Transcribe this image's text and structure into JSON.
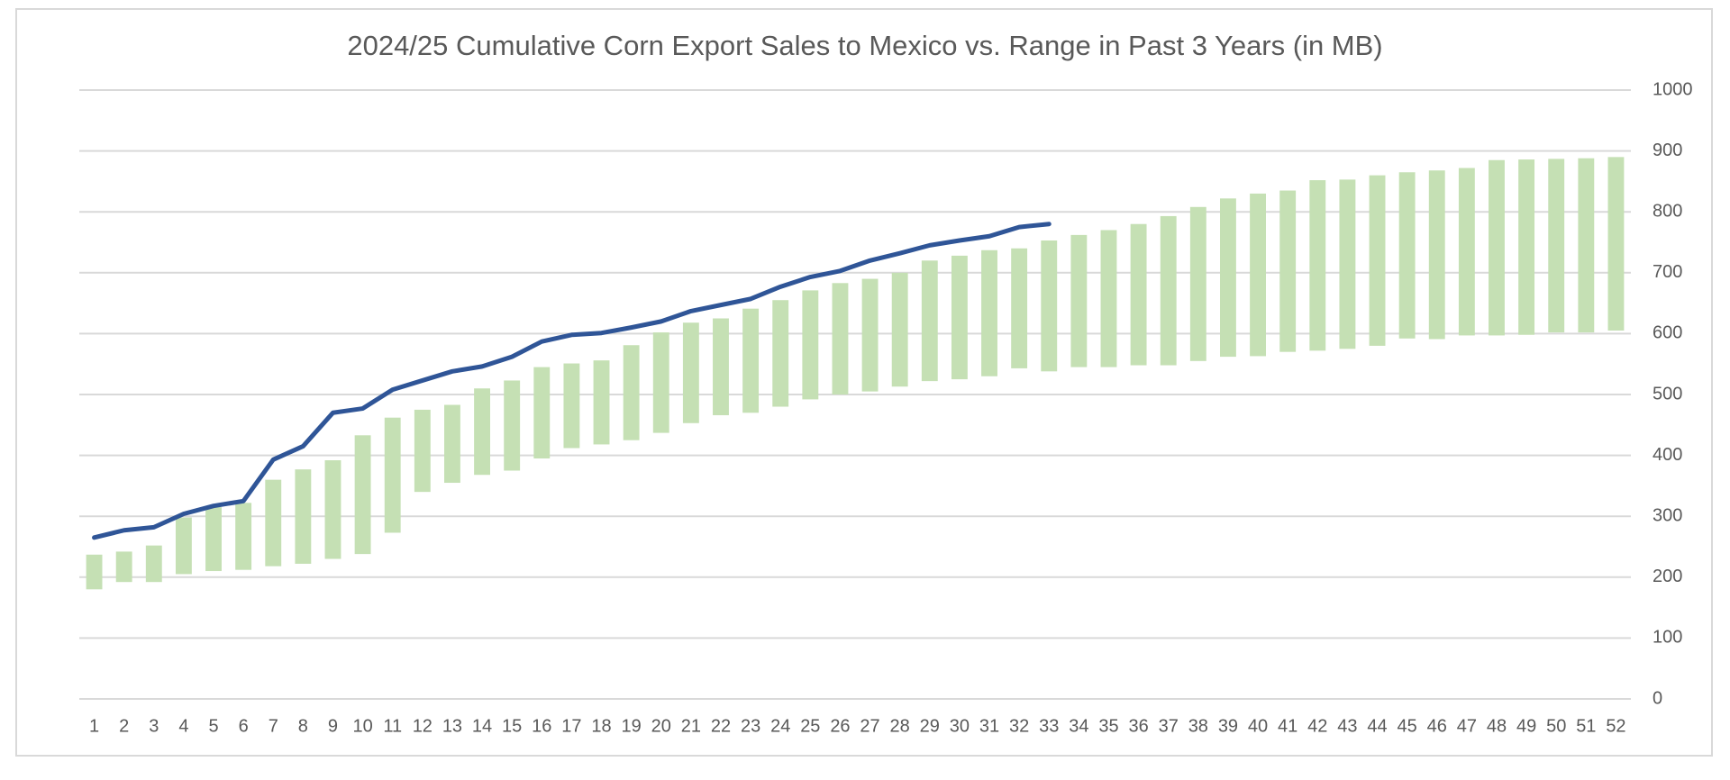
{
  "chart_data": {
    "type": "floating-bar-line",
    "title": "2024/25 Cumulative Corn Export Sales to Mexico vs. Range in Past 3 Years (in MB)",
    "categories": [
      "1",
      "2",
      "3",
      "4",
      "5",
      "6",
      "7",
      "8",
      "9",
      "10",
      "11",
      "12",
      "13",
      "14",
      "15",
      "16",
      "17",
      "18",
      "19",
      "20",
      "21",
      "22",
      "23",
      "24",
      "25",
      "26",
      "27",
      "28",
      "29",
      "30",
      "31",
      "32",
      "33",
      "34",
      "35",
      "36",
      "37",
      "38",
      "39",
      "40",
      "41",
      "42",
      "43",
      "44",
      "45",
      "46",
      "47",
      "48",
      "49",
      "50",
      "51",
      "52"
    ],
    "range": {
      "color": "#c5e0b4",
      "low": [
        180,
        192,
        192,
        205,
        210,
        212,
        218,
        222,
        230,
        238,
        273,
        340,
        355,
        368,
        375,
        395,
        412,
        418,
        425,
        437,
        453,
        466,
        470,
        480,
        492,
        500,
        505,
        513,
        522,
        525,
        530,
        543,
        538,
        545,
        545,
        548,
        548,
        555,
        562,
        563,
        570,
        572,
        575,
        580,
        592,
        591,
        597,
        597,
        598,
        602,
        602,
        605
      ],
      "high": [
        237,
        242,
        252,
        298,
        315,
        322,
        360,
        377,
        392,
        433,
        462,
        475,
        483,
        510,
        523,
        545,
        551,
        556,
        581,
        602,
        618,
        625,
        641,
        655,
        671,
        683,
        690,
        700,
        720,
        728,
        737,
        740,
        753,
        762,
        770,
        780,
        793,
        808,
        822,
        830,
        835,
        852,
        853,
        860,
        865,
        868,
        872,
        885,
        886,
        887,
        888,
        890
      ]
    },
    "line": {
      "color": "#2f5597",
      "values": [
        265,
        277,
        282,
        304,
        317,
        325,
        393,
        415,
        470,
        477,
        508,
        523,
        538,
        546,
        562,
        587,
        598,
        601,
        610,
        620,
        637,
        647,
        657,
        677,
        693,
        703,
        720,
        732,
        745,
        753,
        760,
        775,
        780,
        null,
        null,
        null,
        null,
        null,
        null,
        null,
        null,
        null,
        null,
        null,
        null,
        null,
        null,
        null,
        null,
        null,
        null,
        null
      ]
    },
    "ylim": [
      0,
      1000
    ],
    "yticks": [
      0,
      100,
      200,
      300,
      400,
      500,
      600,
      700,
      800,
      900,
      1000
    ],
    "y_axis_side": "right",
    "grid": true
  }
}
